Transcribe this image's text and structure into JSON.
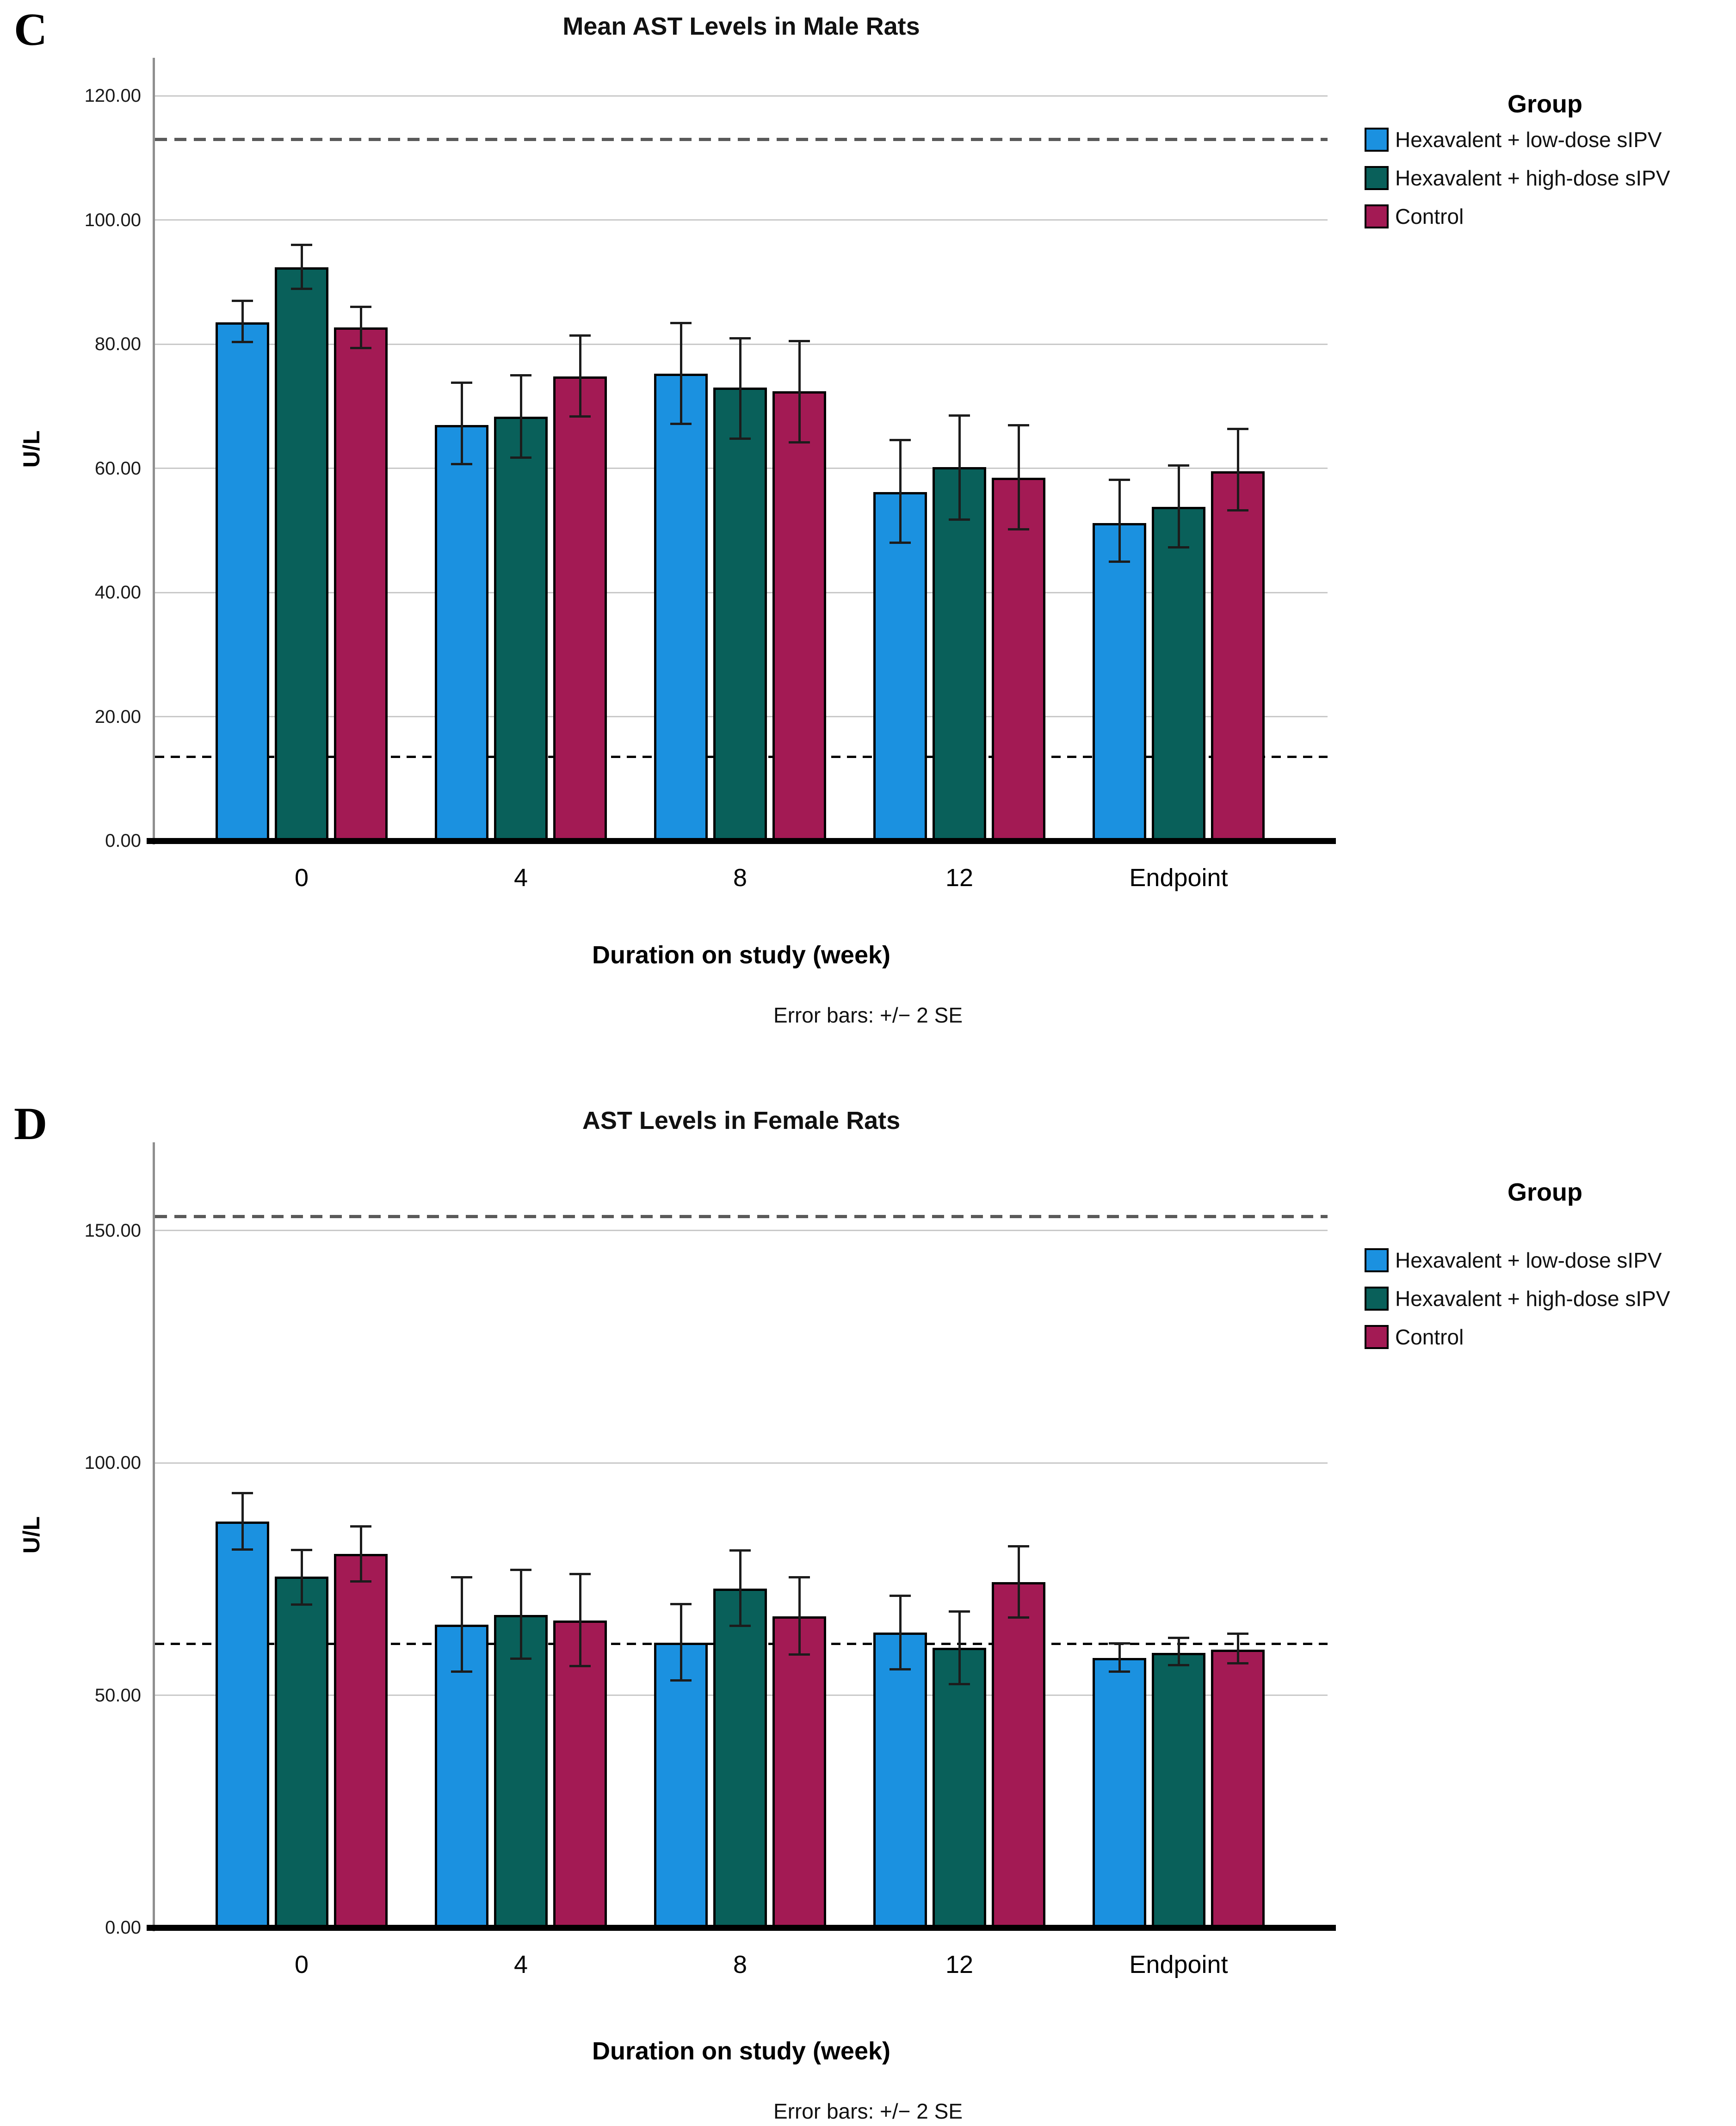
{
  "chart_data": [
    {
      "type": "bar",
      "panel_label": "C",
      "title": "Mean AST Levels in Male Rats",
      "xlabel": "Duration on study (week)",
      "ylabel": "U/L",
      "error_note": "Error bars: +/− 2 SE",
      "categories": [
        "0",
        "4",
        "8",
        "12",
        "Endpoint"
      ],
      "yticks": [
        0,
        20,
        40,
        60,
        80,
        100,
        120
      ],
      "ytick_labels": [
        "0.00",
        "20.00",
        "40.00",
        "60.00",
        "80.00",
        "100.00",
        "120.00"
      ],
      "ylim": [
        0,
        126
      ],
      "grid": true,
      "legend": {
        "title": "Group",
        "position": "right"
      },
      "series": [
        {
          "name": "Hexavalent + low-dose sIPV",
          "color": "#1b91e0",
          "values": [
            83.5,
            67.0,
            75.2,
            56.2,
            51.2
          ],
          "err_low": [
            80.3,
            60.6,
            67.1,
            48.0,
            44.9
          ],
          "err_high": [
            87.0,
            73.8,
            83.4,
            64.6,
            58.2
          ]
        },
        {
          "name": "Hexavalent + high-dose sIPV",
          "color": "#09605a",
          "values": [
            92.4,
            68.3,
            73.0,
            60.2,
            53.8
          ],
          "err_low": [
            88.9,
            61.7,
            64.7,
            51.7,
            47.2
          ],
          "err_high": [
            96.0,
            75.0,
            81.0,
            68.5,
            60.5
          ]
        },
        {
          "name": "Control",
          "color": "#a31a54",
          "values": [
            82.7,
            74.8,
            72.4,
            58.5,
            59.5
          ],
          "err_low": [
            79.3,
            68.3,
            64.1,
            50.1,
            53.2
          ],
          "err_high": [
            86.0,
            81.4,
            80.5,
            67.0,
            66.4
          ]
        }
      ],
      "reference_lines": [
        {
          "y": 113,
          "style": "dashed",
          "color": "#5a5a5a"
        },
        {
          "y": 13.5,
          "style": "dashed",
          "color": "#000000"
        }
      ]
    },
    {
      "type": "bar",
      "panel_label": "D",
      "title": "AST Levels in Female Rats",
      "xlabel": "Duration on study (week)",
      "ylabel": "U/L",
      "error_note": "Error bars: +/− 2 SE",
      "categories": [
        "0",
        "4",
        "8",
        "12",
        "Endpoint"
      ],
      "yticks": [
        0,
        50,
        100,
        150
      ],
      "ytick_labels": [
        "0.00",
        "50.00",
        "100.00",
        "150.00"
      ],
      "ylim": [
        0,
        169
      ],
      "grid": true,
      "legend": {
        "title": "Group",
        "position": "right"
      },
      "series": [
        {
          "name": "Hexavalent + low-dose sIPV",
          "color": "#1b91e0",
          "values": [
            87.4,
            65.2,
            61.3,
            63.5,
            58.0
          ],
          "err_low": [
            81.3,
            55.0,
            53.1,
            55.5,
            55.0
          ],
          "err_high": [
            93.5,
            75.4,
            69.7,
            71.4,
            61.2
          ]
        },
        {
          "name": "Hexavalent + high-dose sIPV",
          "color": "#09605a",
          "values": [
            75.5,
            67.3,
            72.9,
            60.2,
            59.1
          ],
          "err_low": [
            69.5,
            57.8,
            64.9,
            52.3,
            56.4
          ],
          "err_high": [
            81.3,
            77.0,
            81.2,
            68.1,
            62.4
          ]
        },
        {
          "name": "Control",
          "color": "#a31a54",
          "values": [
            80.4,
            66.1,
            67.0,
            74.3,
            59.8
          ],
          "err_low": [
            74.4,
            56.2,
            58.7,
            66.7,
            56.8
          ],
          "err_high": [
            86.4,
            76.1,
            75.4,
            82.1,
            63.3
          ]
        }
      ],
      "reference_lines": [
        {
          "y": 153,
          "style": "dashed",
          "color": "#5a5a5a"
        },
        {
          "y": 61,
          "style": "dashed",
          "color": "#000000"
        }
      ]
    }
  ]
}
